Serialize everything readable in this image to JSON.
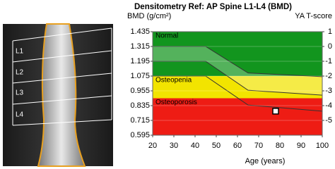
{
  "xray": {
    "labels": [
      "L1",
      "L2",
      "L3",
      "L4"
    ]
  },
  "chart_data": {
    "type": "zone-reference",
    "title": "Densitometry Ref: AP Spine L1-L4 (BMD)",
    "ylabel": "BMD (g/cm²)",
    "y2label": "YA T-score",
    "xlabel": "Age (years)",
    "xlim": [
      20,
      100
    ],
    "xticks": [
      20,
      30,
      40,
      50,
      60,
      70,
      80,
      90,
      100
    ],
    "ylim": [
      0.595,
      1.435
    ],
    "yticks": [
      0.595,
      0.715,
      0.835,
      0.955,
      1.075,
      1.195,
      1.315,
      1.435
    ],
    "y2lim": [
      -6,
      1
    ],
    "y2ticks": [
      1,
      0,
      -1,
      -2,
      -3,
      -4,
      -5
    ],
    "grid": true,
    "zones": [
      {
        "label": "Normal",
        "from": 1.075,
        "to": 1.435,
        "color": "#12951e",
        "label_color": "#ffffff"
      },
      {
        "label": "Osteopenia",
        "from": 0.895,
        "to": 1.075,
        "color": "#f2e400",
        "label_color": "#000000"
      },
      {
        "label": "Osteoporosis",
        "from": 0.595,
        "to": 0.895,
        "color": "#ee1c14",
        "label_color": "#ffffff"
      }
    ],
    "reference": {
      "x": [
        20,
        45,
        65,
        100
      ],
      "upper": [
        1.315,
        1.315,
        1.1,
        1.07
      ],
      "middle": [
        1.195,
        1.195,
        0.96,
        0.92
      ],
      "lower": [
        1.075,
        1.075,
        0.84,
        0.79
      ],
      "color": "#333333"
    },
    "patient": {
      "x": 78,
      "y": 0.79
    }
  }
}
